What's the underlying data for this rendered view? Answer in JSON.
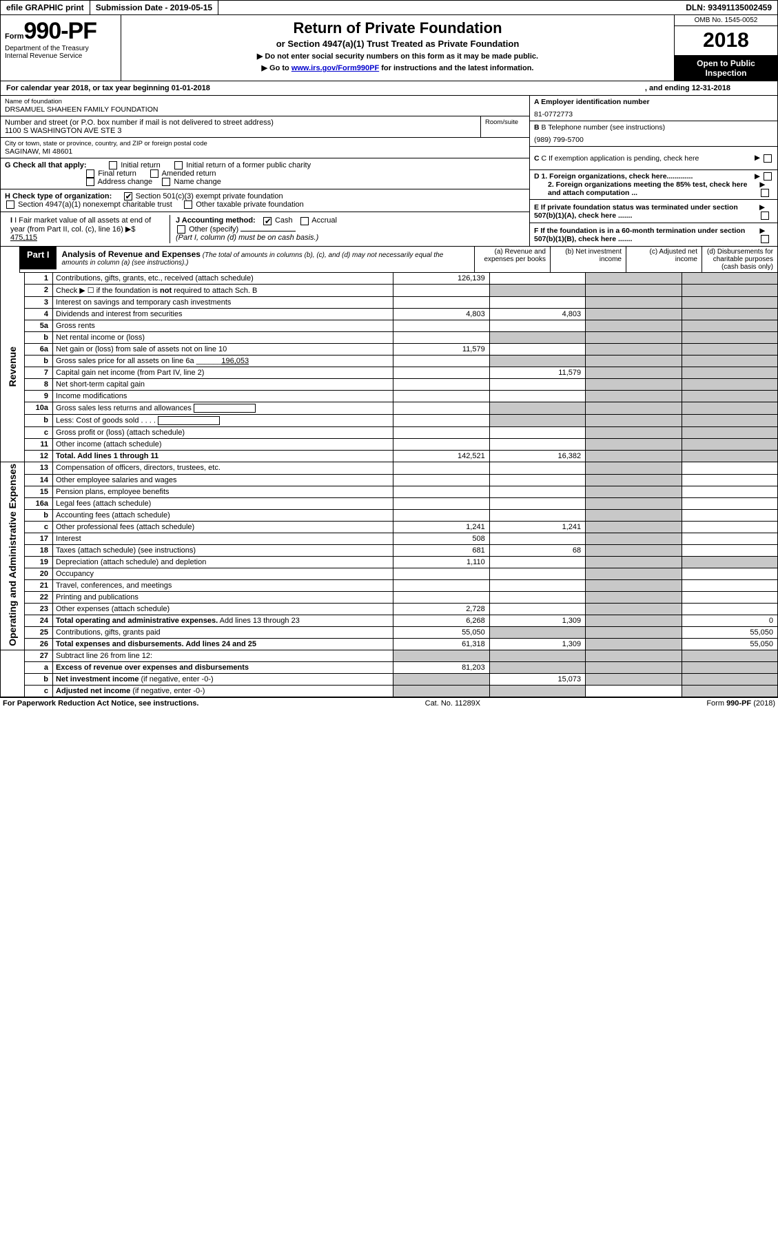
{
  "top": {
    "efile": "efile GRAPHIC print",
    "subdate_label": "Submission Date - ",
    "subdate": "2019-05-15",
    "dln_label": "DLN: ",
    "dln": "93491135002459"
  },
  "header": {
    "form_word": "Form",
    "form_no": "990-PF",
    "dept": "Department of the Treasury",
    "irs": "Internal Revenue Service",
    "title": "Return of Private Foundation",
    "subtitle": "or Section 4947(a)(1) Trust Treated as Private Foundation",
    "note1": "▶ Do not enter social security numbers on this form as it may be made public.",
    "note2_pre": "▶ Go to ",
    "note2_link": "www.irs.gov/Form990PF",
    "note2_post": " for instructions and the latest information.",
    "omb": "OMB No. 1545-0052",
    "year": "2018",
    "inspect": "Open to Public Inspection"
  },
  "cal": {
    "a": "For calendar year 2018, or tax year beginning 01-01-2018",
    "b": ", and ending 12-31-2018"
  },
  "info": {
    "name_lbl": "Name of foundation",
    "name": "DRSAMUEL SHAHEEN FAMILY FOUNDATION",
    "addr_lbl": "Number and street (or P.O. box number if mail is not delivered to street address)",
    "addr": "1100 S WASHINGTON AVE STE 3",
    "room_lbl": "Room/suite",
    "city_lbl": "City or town, state or province, country, and ZIP or foreign postal code",
    "city": "SAGINAW, MI  48601",
    "a_lbl": "A Employer identification number",
    "a_val": "81-0772773",
    "b_lbl": "B Telephone number (see instructions)",
    "b_val": "(989) 799-5700",
    "c_lbl": "C If exemption application is pending, check here",
    "d1": "D 1. Foreign organizations, check here.............",
    "d2": "2. Foreign organizations meeting the 85% test, check here and attach computation ...",
    "e_lbl": "E  If private foundation status was terminated under section 507(b)(1)(A), check here .......",
    "f_lbl": "F  If the foundation is in a 60-month termination under section 507(b)(1)(B), check here .......",
    "g_lbl": "G Check all that apply:",
    "g_opts": [
      "Initial return",
      "Initial return of a former public charity",
      "Final return",
      "Amended return",
      "Address change",
      "Name change"
    ],
    "h_lbl": "H Check type of organization:",
    "h_opts": [
      "Section 501(c)(3) exempt private foundation",
      "Section 4947(a)(1) nonexempt charitable trust",
      "Other taxable private foundation"
    ],
    "i_lbl": "I Fair market value of all assets at end of year (from Part II, col. (c), line 16) ▶$",
    "i_val": "475,115",
    "j_lbl": "J Accounting method:",
    "j_cash": "Cash",
    "j_accr": "Accrual",
    "j_other": "Other (specify)",
    "j_note": "(Part I, column (d) must be on cash basis.)"
  },
  "part1": {
    "tag": "Part I",
    "title": "Analysis of Revenue and Expenses",
    "note": " (The total of amounts in columns (b), (c), and (d) may not necessarily equal the amounts in column (a) (see instructions).)",
    "col_a": "(a)   Revenue and expenses per books",
    "col_b": "(b)  Net investment income",
    "col_c": "(c)  Adjusted net income",
    "col_d": "(d)  Disbursements for charitable purposes (cash basis only)"
  },
  "side_rev": "Revenue",
  "side_exp": "Operating and Administrative Expenses",
  "rows": [
    {
      "n": "1",
      "d": "Contributions, gifts, grants, etc., received (attach schedule)",
      "a": "126,139"
    },
    {
      "n": "2",
      "d": "Check ▶ ☐ if the foundation is <b>not</b> required to attach Sch. B"
    },
    {
      "n": "3",
      "d": "Interest on savings and temporary cash investments"
    },
    {
      "n": "4",
      "d": "Dividends and interest from securities",
      "a": "4,803",
      "b": "4,803"
    },
    {
      "n": "5a",
      "d": "Gross rents"
    },
    {
      "n": "b",
      "d": "Net rental income or (loss)"
    },
    {
      "n": "6a",
      "d": "Net gain or (loss) from sale of assets not on line 10",
      "a": "11,579"
    },
    {
      "n": "b",
      "d": "Gross sales price for all assets on line 6a ______<u>196,053</u>"
    },
    {
      "n": "7",
      "d": "Capital gain net income (from Part IV, line 2)",
      "b": "11,579"
    },
    {
      "n": "8",
      "d": "Net short-term capital gain"
    },
    {
      "n": "9",
      "d": "Income modifications"
    },
    {
      "n": "10a",
      "d": "Gross sales less returns and allowances  <span class='inline-box'></span>"
    },
    {
      "n": "b",
      "d": "Less: Cost of goods sold  . . . .  <span class='inline-box'></span>"
    },
    {
      "n": "c",
      "d": "Gross profit or (loss) (attach schedule)"
    },
    {
      "n": "11",
      "d": "Other income (attach schedule)"
    },
    {
      "n": "12",
      "d": "<b>Total.</b> Add lines 1 through 11",
      "a": "142,521",
      "b": "16,382",
      "bold": true
    }
  ],
  "rows2": [
    {
      "n": "13",
      "d": "Compensation of officers, directors, trustees, etc."
    },
    {
      "n": "14",
      "d": "Other employee salaries and wages"
    },
    {
      "n": "15",
      "d": "Pension plans, employee benefits"
    },
    {
      "n": "16a",
      "d": "Legal fees (attach schedule)"
    },
    {
      "n": "b",
      "d": "Accounting fees (attach schedule)"
    },
    {
      "n": "c",
      "d": "Other professional fees (attach schedule)",
      "a": "1,241",
      "b": "1,241"
    },
    {
      "n": "17",
      "d": "Interest",
      "a": "508"
    },
    {
      "n": "18",
      "d": "Taxes (attach schedule) (see instructions)",
      "a": "681",
      "b": "68"
    },
    {
      "n": "19",
      "d": "Depreciation (attach schedule) and depletion",
      "a": "1,110"
    },
    {
      "n": "20",
      "d": "Occupancy"
    },
    {
      "n": "21",
      "d": "Travel, conferences, and meetings"
    },
    {
      "n": "22",
      "d": "Printing and publications"
    },
    {
      "n": "23",
      "d": "Other expenses (attach schedule)",
      "a": "2,728"
    },
    {
      "n": "24",
      "d": "<b>Total operating and administrative expenses.</b> Add lines 13 through 23",
      "a": "6,268",
      "b": "1,309",
      "dd": "0"
    },
    {
      "n": "25",
      "d": "Contributions, gifts, grants paid",
      "a": "55,050",
      "dd": "55,050"
    },
    {
      "n": "26",
      "d": "<b>Total expenses and disbursements.</b> Add lines 24 and 25",
      "a": "61,318",
      "b": "1,309",
      "dd": "55,050",
      "bold": true
    }
  ],
  "rows3": [
    {
      "n": "27",
      "d": "Subtract line 26 from line 12:"
    },
    {
      "n": "a",
      "d": "<b>Excess of revenue over expenses and disbursements</b>",
      "a": "81,203"
    },
    {
      "n": "b",
      "d": "<b>Net investment income</b> (if negative, enter -0-)",
      "b": "15,073"
    },
    {
      "n": "c",
      "d": "<b>Adjusted net income</b> (if negative, enter -0-)"
    }
  ],
  "footer": {
    "l": "For Paperwork Reduction Act Notice, see instructions.",
    "c": "Cat. No. 11289X",
    "r": "Form 990-PF (2018)"
  }
}
